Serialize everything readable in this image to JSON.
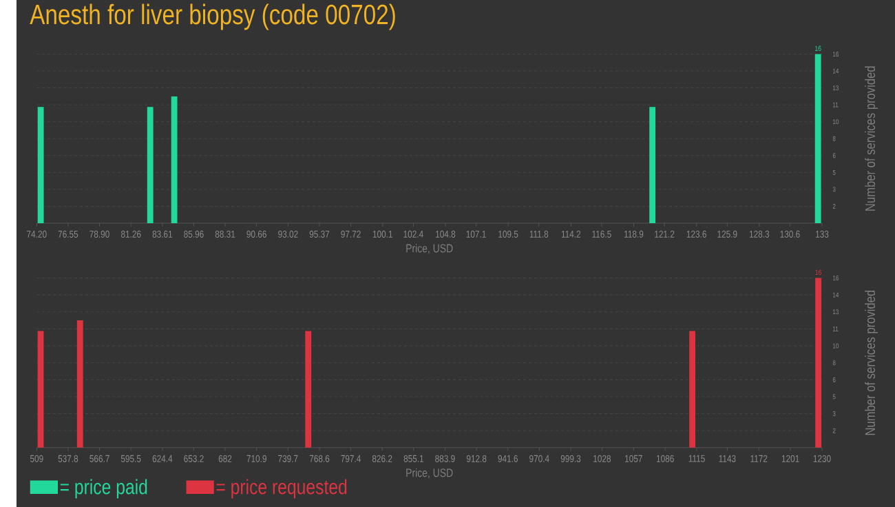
{
  "chart_data": [
    {
      "type": "bar",
      "title": "Anesth for liver biopsy (code 00702)",
      "xlabel": "Price, USD",
      "ylabel": "Number of services provided",
      "x": [
        74.5,
        82.7,
        84.5,
        120.3,
        132.7
      ],
      "series": [
        {
          "name": "= price paid",
          "color": "#22d89a",
          "values": [
            11,
            11,
            12,
            11,
            16
          ],
          "value_labels": [
            null,
            null,
            null,
            null,
            "16"
          ]
        }
      ],
      "xlim": [
        74.2,
        133
      ],
      "xticks": [
        {
          "value": 74.2,
          "label": "74.20"
        },
        76.55,
        {
          "value": 78.9,
          "label": "78.90"
        },
        81.26,
        83.61,
        85.96,
        88.31,
        90.66,
        93.02,
        95.37,
        97.72,
        100.1,
        102.4,
        104.8,
        107.1,
        109.5,
        111.8,
        114.2,
        116.5,
        118.9,
        121.2,
        123.6,
        125.9,
        128.3,
        130.6,
        133
      ],
      "ylim": [
        0,
        16
      ],
      "yticks": [
        {
          "value": 1.6,
          "label": "2"
        },
        {
          "value": 3.2,
          "label": "3"
        },
        {
          "value": 4.8,
          "label": "5"
        },
        {
          "value": 6.4,
          "label": "6"
        },
        8,
        {
          "value": 9.6,
          "label": "10"
        },
        {
          "value": 11.2,
          "label": "11"
        },
        {
          "value": 12.8,
          "label": "13"
        },
        {
          "value": 14.4,
          "label": "14"
        },
        16
      ],
      "grid": "y",
      "legend": "bottom left"
    },
    {
      "type": "bar",
      "xlabel": "Price, USD",
      "ylabel": "Number of services provided",
      "x": [
        512.6,
        548.8,
        758.3,
        1110.9,
        1226.6
      ],
      "series": [
        {
          "name": "= price requested",
          "color": "#dc3441",
          "values": [
            11,
            12,
            11,
            11,
            16
          ],
          "value_labels": [
            null,
            null,
            null,
            null,
            "16"
          ]
        }
      ],
      "xlim": [
        509,
        1230
      ],
      "xticks": [
        509,
        537.8,
        566.7,
        595.5,
        624.4,
        653.2,
        682,
        710.9,
        739.7,
        768.6,
        797.4,
        826.2,
        855.1,
        883.9,
        912.8,
        941.6,
        970.4,
        999.3,
        1028,
        1057,
        1086,
        1115,
        1143,
        1172,
        1201,
        1230
      ],
      "ylim": [
        0,
        16
      ],
      "yticks": [
        {
          "value": 1.6,
          "label": "2"
        },
        {
          "value": 3.2,
          "label": "3"
        },
        {
          "value": 4.8,
          "label": "5"
        },
        {
          "value": 6.4,
          "label": "6"
        },
        8,
        {
          "value": 9.6,
          "label": "10"
        },
        {
          "value": 11.2,
          "label": "11"
        },
        {
          "value": 12.8,
          "label": "13"
        },
        {
          "value": 14.4,
          "label": "14"
        },
        16
      ],
      "grid": "y",
      "legend": "bottom left"
    }
  ]
}
